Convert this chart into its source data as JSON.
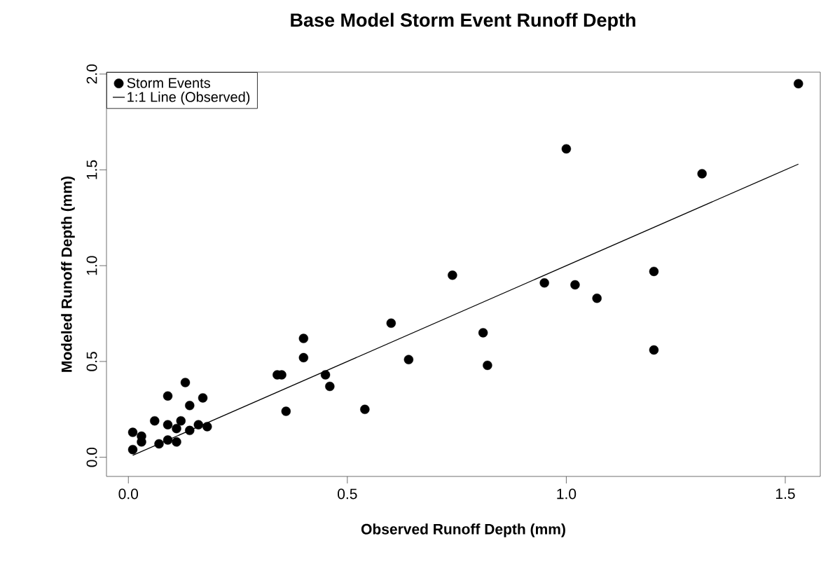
{
  "chart_data": {
    "type": "scatter",
    "title": "Base Model Storm Event Runoff Depth",
    "xlabel": "Observed Runoff Depth (mm)",
    "ylabel": "Modeled Runoff Depth (mm)",
    "xlim": [
      -0.05,
      1.58
    ],
    "ylim": [
      -0.1,
      2.01
    ],
    "xticks": [
      {
        "value": 0,
        "label": "0.0"
      },
      0.5,
      {
        "value": 1,
        "label": "1.0"
      },
      1.5
    ],
    "yticks": [
      {
        "value": 0,
        "label": "0.0"
      },
      0.5,
      {
        "value": 1,
        "label": "1.0"
      },
      1.5,
      {
        "value": 2,
        "label": "2.0"
      }
    ],
    "grid": false,
    "legend": "top left",
    "series": [
      {
        "name": "Storm Events",
        "marker": "circle",
        "color": "#000000",
        "x": [
          0.01,
          0.01,
          0.03,
          0.03,
          0.06,
          0.07,
          0.09,
          0.09,
          0.09,
          0.11,
          0.11,
          0.12,
          0.13,
          0.14,
          0.14,
          0.16,
          0.17,
          0.18,
          0.34,
          0.35,
          0.36,
          0.4,
          0.4,
          0.45,
          0.46,
          0.54,
          0.6,
          0.64,
          0.74,
          0.81,
          0.82,
          0.95,
          1.0,
          1.02,
          1.07,
          1.2,
          1.2,
          1.31,
          1.53
        ],
        "values": [
          0.04,
          0.13,
          0.11,
          0.08,
          0.19,
          0.07,
          0.32,
          0.17,
          0.09,
          0.08,
          0.15,
          0.19,
          0.39,
          0.14,
          0.27,
          0.17,
          0.31,
          0.16,
          0.43,
          0.43,
          0.24,
          0.62,
          0.52,
          0.43,
          0.37,
          0.25,
          0.7,
          0.51,
          0.95,
          0.65,
          0.48,
          0.91,
          1.61,
          0.9,
          0.83,
          0.97,
          0.56,
          1.48,
          1.95
        ]
      },
      {
        "name": "1:1 Line (Observed)",
        "type": "line",
        "color": "#000000",
        "marker": "none",
        "line_style": "solid",
        "x": [
          0.01,
          1.53
        ],
        "values": [
          0.01,
          1.53
        ]
      }
    ]
  }
}
